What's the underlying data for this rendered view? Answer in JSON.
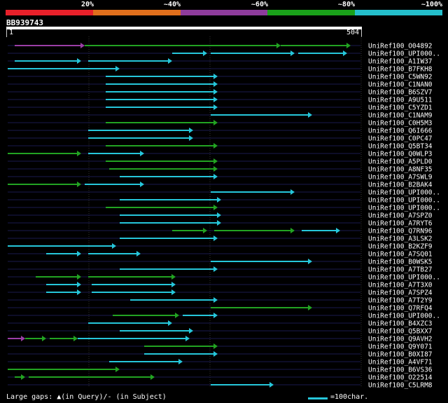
{
  "legend": {
    "labels": [
      "20%",
      "~40%",
      "~60%",
      "~80%",
      "~100%"
    ],
    "colors": [
      "#e8202a",
      "#e06f1c",
      "#8e3c9c",
      "#1aa11a",
      "#24bfcc"
    ]
  },
  "query": {
    "name": "BB939743",
    "start": "1",
    "end": "504",
    "length": 504
  },
  "colors": {
    "green": "#22a322",
    "cyan": "#26c6da",
    "purple": "#9b3ea6",
    "track": "#1a1a4e"
  },
  "hits": [
    {
      "id": "UniRef100_O04892",
      "segs": [
        [
          10,
          110,
          "purple"
        ],
        [
          110,
          390,
          "green"
        ],
        [
          390,
          490,
          "green"
        ]
      ]
    },
    {
      "id": "UniRef100_UPI000..",
      "segs": [
        [
          235,
          285,
          "cyan"
        ],
        [
          290,
          410,
          "cyan"
        ],
        [
          415,
          485,
          "cyan"
        ]
      ]
    },
    {
      "id": "UniRef100_A1IW37",
      "segs": [
        [
          10,
          105,
          "cyan"
        ],
        [
          115,
          235,
          "cyan"
        ]
      ]
    },
    {
      "id": "UniRef100_B7FKH8",
      "segs": [
        [
          0,
          160,
          "cyan"
        ]
      ]
    },
    {
      "id": "UniRef100_C5WN92",
      "segs": [
        [
          140,
          300,
          "cyan"
        ]
      ]
    },
    {
      "id": "UniRef100_C1NAN0",
      "segs": [
        [
          140,
          300,
          "cyan"
        ]
      ]
    },
    {
      "id": "UniRef100_B6SZV7",
      "segs": [
        [
          140,
          300,
          "cyan"
        ]
      ]
    },
    {
      "id": "UniRef100_A9U511",
      "segs": [
        [
          140,
          300,
          "cyan"
        ]
      ]
    },
    {
      "id": "UniRef100_C5YZD1",
      "segs": [
        [
          140,
          300,
          "cyan"
        ]
      ]
    },
    {
      "id": "UniRef100_C1NAM9",
      "segs": [
        [
          290,
          435,
          "cyan"
        ]
      ]
    },
    {
      "id": "UniRef100_C0H5M3",
      "segs": [
        [
          140,
          300,
          "green"
        ]
      ]
    },
    {
      "id": "UniRef100_Q6I666",
      "segs": [
        [
          115,
          265,
          "cyan"
        ]
      ]
    },
    {
      "id": "UniRef100_C0PC47",
      "segs": [
        [
          115,
          265,
          "cyan"
        ]
      ]
    },
    {
      "id": "UniRef100_Q5BT34",
      "segs": [
        [
          140,
          300,
          "green"
        ]
      ]
    },
    {
      "id": "UniRef100_Q0WLP3",
      "segs": [
        [
          0,
          105,
          "green"
        ],
        [
          115,
          195,
          "cyan"
        ]
      ]
    },
    {
      "id": "UniRef100_A5PLD0",
      "segs": [
        [
          140,
          300,
          "green"
        ]
      ]
    },
    {
      "id": "UniRef100_A8NF35",
      "segs": [
        [
          145,
          300,
          "green"
        ]
      ]
    },
    {
      "id": "UniRef100_A7SWL9",
      "segs": [
        [
          160,
          300,
          "cyan"
        ]
      ]
    },
    {
      "id": "UniRef100_B2BAK4",
      "segs": [
        [
          0,
          105,
          "green"
        ],
        [
          110,
          195,
          "cyan"
        ]
      ]
    },
    {
      "id": "UniRef100_UPI000..",
      "segs": [
        [
          290,
          410,
          "cyan"
        ]
      ]
    },
    {
      "id": "UniRef100_UPI000..",
      "segs": [
        [
          160,
          305,
          "cyan"
        ]
      ]
    },
    {
      "id": "UniRef100_UPI000..",
      "segs": [
        [
          140,
          300,
          "green"
        ]
      ]
    },
    {
      "id": "UniRef100_A7SPZ0",
      "segs": [
        [
          160,
          305,
          "cyan"
        ]
      ]
    },
    {
      "id": "UniRef100_A7RYT6",
      "segs": [
        [
          160,
          305,
          "cyan"
        ]
      ]
    },
    {
      "id": "UniRef100_Q7RN96",
      "segs": [
        [
          235,
          285,
          "green"
        ],
        [
          295,
          410,
          "green"
        ],
        [
          420,
          475,
          "cyan"
        ]
      ]
    },
    {
      "id": "UniRef100_A3LSK2",
      "segs": [
        [
          160,
          300,
          "cyan"
        ]
      ]
    },
    {
      "id": "UniRef100_B2KZF9",
      "segs": [
        [
          0,
          155,
          "cyan"
        ]
      ]
    },
    {
      "id": "UniRef100_A7SQ01",
      "segs": [
        [
          55,
          105,
          "cyan"
        ],
        [
          115,
          190,
          "cyan"
        ]
      ]
    },
    {
      "id": "UniRef100_B0WSK5",
      "segs": [
        [
          290,
          435,
          "cyan"
        ]
      ]
    },
    {
      "id": "UniRef100_A7TB27",
      "segs": [
        [
          160,
          300,
          "cyan"
        ]
      ]
    },
    {
      "id": "UniRef100_UPI000..",
      "segs": [
        [
          40,
          105,
          "green"
        ],
        [
          115,
          240,
          "green"
        ]
      ]
    },
    {
      "id": "UniRef100_A7T3X0",
      "segs": [
        [
          55,
          105,
          "cyan"
        ],
        [
          120,
          240,
          "cyan"
        ]
      ]
    },
    {
      "id": "UniRef100_A7SPZ4",
      "segs": [
        [
          55,
          105,
          "cyan"
        ],
        [
          120,
          240,
          "cyan"
        ]
      ]
    },
    {
      "id": "UniRef100_A7T2Y9",
      "segs": [
        [
          175,
          300,
          "cyan"
        ]
      ]
    },
    {
      "id": "UniRef100_Q7RFQ4",
      "segs": [
        [
          290,
          435,
          "green"
        ]
      ]
    },
    {
      "id": "UniRef100_UPI000..",
      "segs": [
        [
          150,
          245,
          "green"
        ],
        [
          250,
          300,
          "cyan"
        ]
      ]
    },
    {
      "id": "UniRef100_B4XZC3",
      "segs": [
        [
          115,
          235,
          "cyan"
        ]
      ]
    },
    {
      "id": "UniRef100_Q5BXX7",
      "segs": [
        [
          160,
          265,
          "cyan"
        ]
      ]
    },
    {
      "id": "UniRef100_Q9AVH2",
      "segs": [
        [
          0,
          25,
          "purple"
        ],
        [
          25,
          55,
          "green"
        ],
        [
          60,
          100,
          "green"
        ],
        [
          100,
          260,
          "cyan"
        ]
      ]
    },
    {
      "id": "UniRef100_Q9Y071",
      "segs": [
        [
          195,
          300,
          "green"
        ]
      ]
    },
    {
      "id": "UniRef100_B0XI87",
      "segs": [
        [
          195,
          300,
          "cyan"
        ]
      ]
    },
    {
      "id": "UniRef100_A4VF71",
      "segs": [
        [
          145,
          250,
          "cyan"
        ]
      ]
    },
    {
      "id": "UniRef100_B6VS36",
      "segs": [
        [
          0,
          160,
          "green"
        ]
      ]
    },
    {
      "id": "UniRef100_O22514",
      "segs": [
        [
          10,
          25,
          "green"
        ],
        [
          30,
          210,
          "green"
        ]
      ]
    },
    {
      "id": "UniRef100_C5LRM8",
      "segs": [
        [
          290,
          380,
          "cyan"
        ]
      ]
    }
  ],
  "footer": {
    "left": "Large gaps: ▲(in Query)/- (in Subject)",
    "right": "=100char."
  }
}
